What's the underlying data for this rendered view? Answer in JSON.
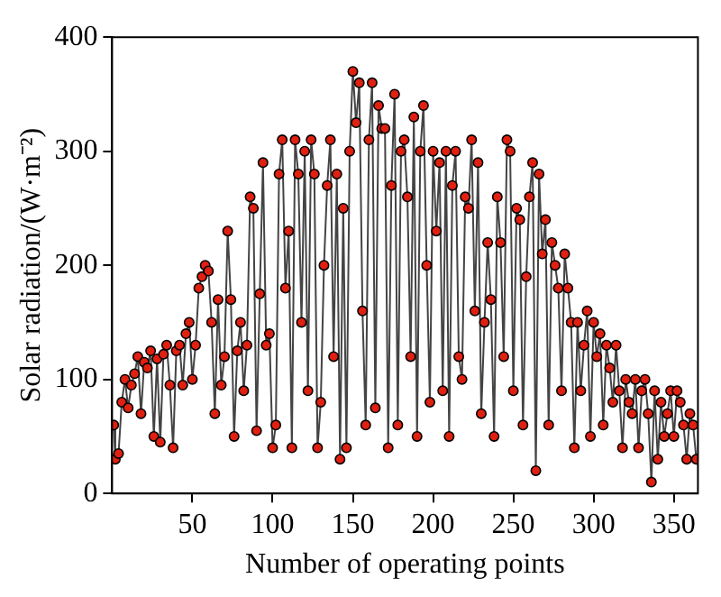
{
  "chart_data": {
    "type": "line",
    "xlabel": "Number of operating points",
    "ylabel": "Solar radiation/(W·m⁻²)",
    "xlim": [
      0,
      365
    ],
    "xticks": [
      50,
      100,
      150,
      200,
      250,
      300,
      350
    ],
    "ylim": [
      0,
      400
    ],
    "yticks": [
      0,
      100,
      200,
      300,
      400
    ],
    "grid": false,
    "legend": false,
    "marker": "circle",
    "line_style": "solid",
    "series": [
      {
        "color": "#e02010",
        "x": [
          1,
          2,
          4,
          6,
          8,
          10,
          12,
          14,
          16,
          18,
          20,
          22,
          24,
          26,
          28,
          30,
          32,
          34,
          36,
          38,
          40,
          42,
          44,
          46,
          48,
          50,
          52,
          54,
          56,
          58,
          60,
          62,
          64,
          66,
          68,
          70,
          72,
          74,
          76,
          78,
          80,
          82,
          84,
          86,
          88,
          90,
          92,
          94,
          96,
          98,
          100,
          102,
          104,
          106,
          108,
          110,
          112,
          114,
          116,
          118,
          120,
          122,
          124,
          126,
          128,
          130,
          132,
          134,
          136,
          138,
          140,
          142,
          144,
          146,
          148,
          150,
          152,
          154,
          156,
          158,
          160,
          162,
          164,
          166,
          168,
          170,
          172,
          174,
          176,
          178,
          180,
          182,
          184,
          186,
          188,
          190,
          192,
          194,
          196,
          198,
          200,
          202,
          204,
          206,
          208,
          210,
          212,
          214,
          216,
          218,
          220,
          222,
          224,
          226,
          228,
          230,
          232,
          234,
          236,
          238,
          240,
          242,
          244,
          246,
          248,
          250,
          252,
          254,
          256,
          258,
          260,
          262,
          264,
          266,
          268,
          270,
          272,
          274,
          276,
          278,
          280,
          282,
          284,
          286,
          288,
          290,
          292,
          294,
          296,
          298,
          300,
          302,
          304,
          306,
          308,
          310,
          312,
          314,
          316,
          318,
          320,
          322,
          324,
          326,
          328,
          330,
          332,
          334,
          336,
          338,
          340,
          342,
          344,
          346,
          348,
          350,
          352,
          354,
          356,
          358,
          360,
          362,
          364
        ],
        "values": [
          60,
          30,
          35,
          80,
          100,
          75,
          95,
          105,
          120,
          70,
          115,
          110,
          125,
          50,
          118,
          45,
          122,
          130,
          95,
          40,
          125,
          130,
          95,
          140,
          150,
          100,
          130,
          180,
          190,
          200,
          195,
          150,
          70,
          170,
          95,
          120,
          230,
          170,
          50,
          125,
          150,
          90,
          130,
          260,
          250,
          55,
          175,
          290,
          130,
          140,
          40,
          60,
          280,
          310,
          180,
          230,
          40,
          310,
          280,
          150,
          300,
          90,
          310,
          280,
          40,
          80,
          200,
          270,
          310,
          120,
          280,
          30,
          250,
          40,
          300,
          370,
          325,
          360,
          160,
          60,
          310,
          360,
          75,
          340,
          320,
          320,
          40,
          270,
          350,
          60,
          300,
          310,
          260,
          120,
          330,
          50,
          300,
          340,
          200,
          80,
          300,
          230,
          290,
          90,
          300,
          50,
          270,
          300,
          120,
          100,
          260,
          250,
          310,
          160,
          290,
          70,
          150,
          220,
          170,
          50,
          260,
          220,
          120,
          310,
          300,
          90,
          250,
          240,
          60,
          190,
          260,
          290,
          20,
          280,
          210,
          240,
          60,
          220,
          200,
          180,
          90,
          210,
          180,
          150,
          40,
          150,
          90,
          130,
          160,
          50,
          150,
          120,
          140,
          60,
          130,
          110,
          80,
          130,
          90,
          40,
          100,
          80,
          70,
          100,
          40,
          90,
          100,
          70,
          10,
          90,
          30,
          80,
          50,
          70,
          90,
          50,
          90,
          80,
          60,
          30,
          70,
          60,
          30
        ]
      }
    ]
  }
}
